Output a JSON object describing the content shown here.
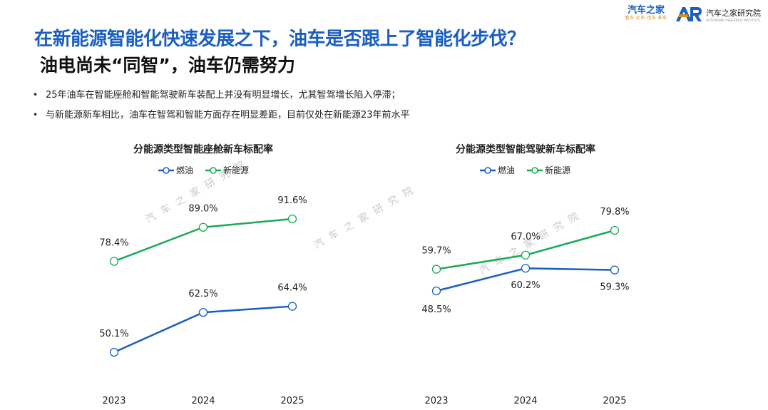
{
  "header": {
    "title": "在新能源智能化快速发展之下，油车是否跟上了智能化步伐？",
    "subtitle": "油电尚未“同智”，油车仍需努力"
  },
  "logos": {
    "brand1_name": "汽车之家",
    "brand1_sub": "看车·买车·用车·养车",
    "brand2_mark": "AR",
    "brand2_name": "汽车之家研究院",
    "brand2_sub": "AUTOHOME RESEARCH INSTITUTE"
  },
  "bullets": [
    "25年油车在智能座舱和智能驾驶新车装配上并没有明显增长，尤其智驾增长陷入停滞；",
    "与新能源新车相比，油车在智驾和智能方面存在明显差距，目前仅处在新能源23年前水平"
  ],
  "watermark": "汽车之家研究院",
  "colors": {
    "fuel": "#1a5fc0",
    "nev": "#1aaa55",
    "title": "#1a5fc0"
  },
  "chart_data": [
    {
      "type": "line",
      "title": "分能源类型智能座舱新车标配率",
      "categories": [
        "2023",
        "2024",
        "2025"
      ],
      "series": [
        {
          "name": "燃油",
          "values": [
            50.1,
            62.5,
            64.4
          ],
          "labels": [
            "50.1%",
            "62.5%",
            "64.4%"
          ]
        },
        {
          "name": "新能源",
          "values": [
            78.4,
            89.0,
            91.6
          ],
          "labels": [
            "78.4%",
            "89.0%",
            "91.6%"
          ]
        }
      ],
      "legend": "top",
      "grid": false
    },
    {
      "type": "line",
      "title": "分能源类型智能驾驶新车标配率",
      "categories": [
        "2023",
        "2024",
        "2025"
      ],
      "series": [
        {
          "name": "燃油",
          "values": [
            48.5,
            60.2,
            59.3
          ],
          "labels": [
            "48.5%",
            "60.2%",
            "59.3%"
          ]
        },
        {
          "name": "新能源",
          "values": [
            59.7,
            67.0,
            79.8
          ],
          "labels": [
            "59.7%",
            "67.0%",
            "79.8%"
          ]
        }
      ],
      "legend": "top",
      "grid": false
    }
  ]
}
